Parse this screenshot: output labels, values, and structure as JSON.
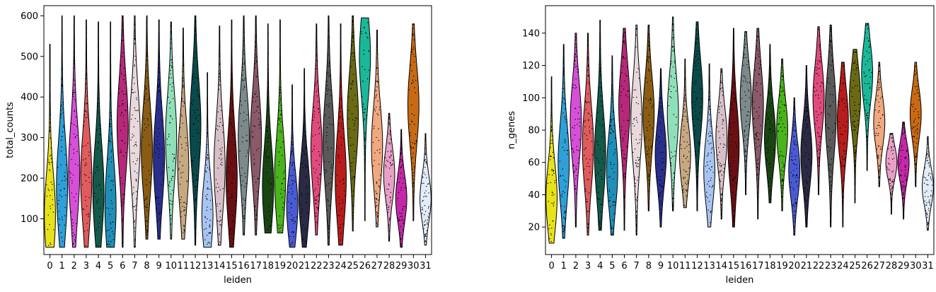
{
  "chart_data": [
    {
      "type": "violin",
      "xlabel": "leiden",
      "ylabel": "total_counts",
      "ylim": [
        12,
        625
      ],
      "yticks": [
        100,
        200,
        300,
        400,
        500,
        600
      ],
      "categories": [
        "0",
        "1",
        "2",
        "3",
        "4",
        "5",
        "6",
        "7",
        "8",
        "9",
        "10",
        "11",
        "12",
        "13",
        "14",
        "15",
        "16",
        "17",
        "18",
        "19",
        "20",
        "21",
        "22",
        "23",
        "24",
        "25",
        "26",
        "27",
        "28",
        "29",
        "30",
        "31"
      ],
      "colors": [
        "#e8e21a",
        "#2f9fd8",
        "#d74fd8",
        "#e05b5d",
        "#14594a",
        "#1f8fb8",
        "#b8287a",
        "#e9d8dc",
        "#8a5c14",
        "#2a2f8c",
        "#8fe0b8",
        "#c8a880",
        "#0a4a4a",
        "#a8c4f0",
        "#d8c0c8",
        "#6a1014",
        "#7c8a8c",
        "#8a5a6a",
        "#1a4414",
        "#4ab41c",
        "#4a5ad4",
        "#2a2a44",
        "#e04a7c",
        "#5a5a5a",
        "#b81c1c",
        "#6a6a14",
        "#1ab898",
        "#f0a880",
        "#e8a0c8",
        "#c428a8",
        "#c86a14",
        "#e0ecf8"
      ],
      "values_min": [
        30,
        30,
        30,
        30,
        30,
        30,
        30,
        30,
        50,
        50,
        50,
        50,
        35,
        30,
        35,
        30,
        60,
        60,
        65,
        65,
        30,
        30,
        60,
        35,
        35,
        70,
        95,
        80,
        45,
        30,
        95,
        35
      ],
      "values_median": [
        110,
        180,
        220,
        200,
        170,
        130,
        330,
        300,
        270,
        250,
        300,
        230,
        330,
        110,
        230,
        200,
        300,
        300,
        180,
        200,
        130,
        160,
        270,
        290,
        200,
        350,
        500,
        280,
        210,
        150,
        380,
        150
      ],
      "values_max": [
        530,
        600,
        600,
        590,
        585,
        585,
        600,
        600,
        600,
        590,
        585,
        570,
        600,
        460,
        575,
        590,
        600,
        600,
        580,
        590,
        430,
        470,
        580,
        600,
        580,
        600,
        595,
        565,
        360,
        320,
        580,
        310
      ]
    },
    {
      "type": "violin",
      "xlabel": "leiden",
      "ylabel": "n_genes",
      "ylim": [
        3,
        157
      ],
      "yticks": [
        20,
        40,
        60,
        80,
        100,
        120,
        140
      ],
      "categories": [
        "0",
        "1",
        "2",
        "3",
        "4",
        "5",
        "6",
        "7",
        "8",
        "9",
        "10",
        "11",
        "12",
        "13",
        "14",
        "15",
        "16",
        "17",
        "18",
        "19",
        "20",
        "21",
        "22",
        "23",
        "24",
        "25",
        "26",
        "27",
        "28",
        "29",
        "30",
        "31"
      ],
      "colors": [
        "#e8e21a",
        "#2f9fd8",
        "#d74fd8",
        "#e05b5d",
        "#14594a",
        "#1f8fb8",
        "#b8287a",
        "#e9d8dc",
        "#8a5c14",
        "#2a2f8c",
        "#8fe0b8",
        "#c8a880",
        "#0a4a4a",
        "#a8c4f0",
        "#d8c0c8",
        "#6a1014",
        "#7c8a8c",
        "#8a5a6a",
        "#1a4414",
        "#4ab41c",
        "#4a5ad4",
        "#2a2a44",
        "#e04a7c",
        "#5a5a5a",
        "#b81c1c",
        "#6a6a14",
        "#1ab898",
        "#f0a880",
        "#e8a0c8",
        "#c428a8",
        "#c86a14",
        "#e0ecf8"
      ],
      "values_min": [
        10,
        13,
        20,
        15,
        18,
        15,
        18,
        15,
        30,
        20,
        30,
        32,
        30,
        20,
        25,
        20,
        40,
        25,
        35,
        30,
        15,
        20,
        40,
        20,
        20,
        35,
        55,
        45,
        28,
        25,
        45,
        18
      ],
      "values_median": [
        38,
        60,
        85,
        70,
        65,
        55,
        95,
        85,
        90,
        65,
        90,
        65,
        100,
        55,
        75,
        70,
        100,
        95,
        75,
        80,
        55,
        65,
        100,
        90,
        85,
        100,
        115,
        85,
        60,
        60,
        90,
        45
      ],
      "values_max": [
        113,
        133,
        140,
        140,
        148,
        126,
        143,
        145,
        145,
        118,
        150,
        124,
        147,
        121,
        118,
        143,
        141,
        143,
        133,
        124,
        100,
        120,
        144,
        145,
        122,
        130,
        146,
        122,
        78,
        85,
        122,
        76
      ]
    }
  ]
}
